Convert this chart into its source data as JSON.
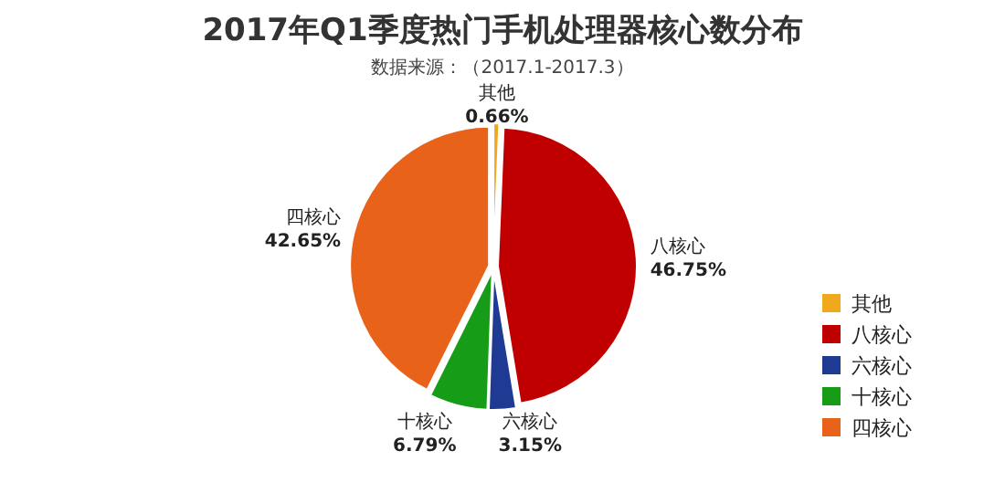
{
  "chart_data": {
    "type": "pie",
    "title": "2017年Q1季度热门手机处理器核心数分布",
    "subtitle": "数据来源：（2017.1-2017.3）",
    "categories": [
      "其他",
      "八核心",
      "六核心",
      "十核心",
      "四核心"
    ],
    "values": [
      0.66,
      46.75,
      3.15,
      6.79,
      42.65
    ],
    "colors": [
      "#f0a81c",
      "#c00000",
      "#1f3a93",
      "#169c16",
      "#e8621a"
    ],
    "value_labels": [
      "0.66%",
      "46.75%",
      "3.15%",
      "6.79%",
      "42.65%"
    ],
    "legend": "right"
  }
}
